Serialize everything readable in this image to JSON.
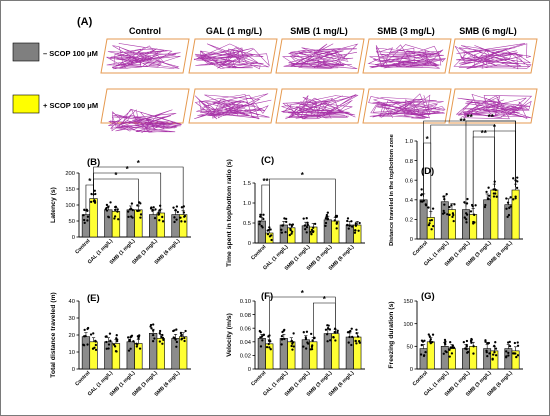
{
  "panel_a": {
    "label": "(A)",
    "columns": [
      "Control",
      "GAL (1 mg/L)",
      "SMB (1 mg/L)",
      "SMB (3 mg/L)",
      "SMB (6 mg/L)"
    ],
    "legend": [
      {
        "text": "– SCOP 100 μM",
        "color": "#7f7f7f"
      },
      {
        "text": "+ SCOP 100 μM",
        "color": "#ffff00"
      }
    ],
    "track_color": "#a020a0",
    "tank_color": "#e69a50"
  },
  "colors": {
    "minus": "#8c8c8c",
    "plus": "#ffff33",
    "dot": "#000000"
  },
  "chart_data": [
    {
      "id": "B",
      "type": "bar",
      "label": "(B)",
      "ylabel": "Latency (s)",
      "categories": [
        "Control",
        "GAL (1 mg/L)",
        "SMB (1 mg/L)",
        "SMB (3 mg/L)",
        "SMB (6 mg/L)"
      ],
      "series": [
        {
          "values": [
            70,
            85,
            85,
            70,
            70
          ]
        },
        {
          "values": [
            120,
            80,
            85,
            75,
            70
          ]
        }
      ],
      "ylim": [
        0,
        200
      ],
      "yticks": [
        0,
        50,
        100,
        150,
        200
      ],
      "grid": false,
      "significance": [
        {
          "from": [
            0,
            0
          ],
          "to": [
            0,
            1
          ],
          "text": "*"
        },
        {
          "from": [
            0,
            1
          ],
          "to": [
            2,
            1
          ],
          "text": "*"
        },
        {
          "from": [
            0,
            1
          ],
          "to": [
            3,
            1
          ],
          "text": "*"
        },
        {
          "from": [
            0,
            1
          ],
          "to": [
            4,
            1
          ],
          "text": "*"
        }
      ]
    },
    {
      "id": "C",
      "type": "bar",
      "label": "(C)",
      "ylabel": "Time spent in top/bottom ratio (s)",
      "categories": [
        "Control",
        "GAL (1 mg/L)",
        "SMB (1 mg/L)",
        "SMB (3 mg/L)",
        "SMB (6 mg/L)"
      ],
      "series": [
        {
          "values": [
            0.55,
            0.45,
            0.43,
            0.58,
            0.45
          ]
        },
        {
          "values": [
            0.25,
            0.38,
            0.4,
            0.55,
            0.45
          ]
        }
      ],
      "ylim": [
        0,
        1.5
      ],
      "yticks": [
        0,
        0.5,
        1.0,
        1.5
      ],
      "grid": false,
      "significance": [
        {
          "from": [
            0,
            0
          ],
          "to": [
            0,
            1
          ],
          "text": "**"
        },
        {
          "from": [
            0,
            1
          ],
          "to": [
            3,
            1
          ],
          "text": "*"
        }
      ]
    },
    {
      "id": "D",
      "type": "bar",
      "label": "(D)",
      "ylabel": "Distance traveled in the top/bottom zone",
      "categories": [
        "Control",
        "GAL (1 mg/L)",
        "SMB (1 mg/L)",
        "SMB (3 mg/L)",
        "SMB (6 mg/L)"
      ],
      "series": [
        {
          "values": [
            0.4,
            0.38,
            0.3,
            0.4,
            0.35
          ]
        },
        {
          "values": [
            0.22,
            0.3,
            0.25,
            0.5,
            0.5
          ]
        }
      ],
      "ylim": [
        0,
        1.0
      ],
      "yticks": [
        0,
        0.2,
        0.4,
        0.6,
        0.8,
        1.0
      ],
      "grid": false,
      "significance": [
        {
          "from": [
            0,
            0
          ],
          "to": [
            0,
            1
          ],
          "text": "*"
        },
        {
          "from": [
            2,
            1
          ],
          "to": [
            3,
            1
          ],
          "text": "**"
        },
        {
          "from": [
            2,
            1
          ],
          "to": [
            4,
            1
          ],
          "text": "*"
        },
        {
          "from": [
            0,
            1
          ],
          "to": [
            3,
            1
          ],
          "text": "**"
        },
        {
          "from": [
            2,
            0
          ],
          "to": [
            4,
            1
          ],
          "text": "**"
        },
        {
          "from": [
            0,
            0
          ],
          "to": [
            4,
            1
          ],
          "text": "**"
        }
      ]
    },
    {
      "id": "E",
      "type": "bar",
      "label": "(E)",
      "ylabel": "Total distance traveled (m)",
      "categories": [
        "Control",
        "GAL (1 mg/L)",
        "SMB (1 mg/L)",
        "SMB (3 mg/L)",
        "SMB (6 mg/L)"
      ],
      "series": [
        {
          "values": [
            19,
            16,
            16,
            21,
            18
          ]
        },
        {
          "values": [
            16,
            15,
            15,
            18,
            19
          ]
        }
      ],
      "ylim": [
        0,
        40
      ],
      "yticks": [
        0,
        10,
        20,
        30,
        40
      ],
      "grid": false,
      "significance": []
    },
    {
      "id": "F",
      "type": "bar",
      "label": "(F)",
      "ylabel": "Velocity (m/s)",
      "categories": [
        "Control",
        "GAL (1 mg/L)",
        "SMB (1 mg/L)",
        "SMB (3 mg/L)",
        "SMB (6 mg/L)"
      ],
      "series": [
        {
          "values": [
            0.045,
            0.045,
            0.043,
            0.052,
            0.047
          ]
        },
        {
          "values": [
            0.037,
            0.04,
            0.04,
            0.052,
            0.047
          ]
        }
      ],
      "ylim": [
        0,
        0.1
      ],
      "yticks": [
        0,
        0.02,
        0.04,
        0.06,
        0.08,
        0.1
      ],
      "grid": false,
      "significance": [
        {
          "from": [
            2,
            1
          ],
          "to": [
            3,
            1
          ],
          "text": "*"
        },
        {
          "from": [
            0,
            1
          ],
          "to": [
            3,
            1
          ],
          "text": "*"
        }
      ]
    },
    {
      "id": "G",
      "type": "bar",
      "label": "(G)",
      "ylabel": "Freezing duration (s)",
      "categories": [
        "Control",
        "GAL (1 mg/L)",
        "SMB (1 mg/L)",
        "SMB (3 mg/L)",
        "SMB (6 mg/L)"
      ],
      "series": [
        {
          "values": [
            45,
            50,
            45,
            45,
            45
          ]
        },
        {
          "values": [
            60,
            45,
            50,
            40,
            40
          ]
        }
      ],
      "ylim": [
        0,
        150
      ],
      "yticks": [
        0,
        50,
        100,
        150
      ],
      "grid": false,
      "significance": []
    }
  ]
}
